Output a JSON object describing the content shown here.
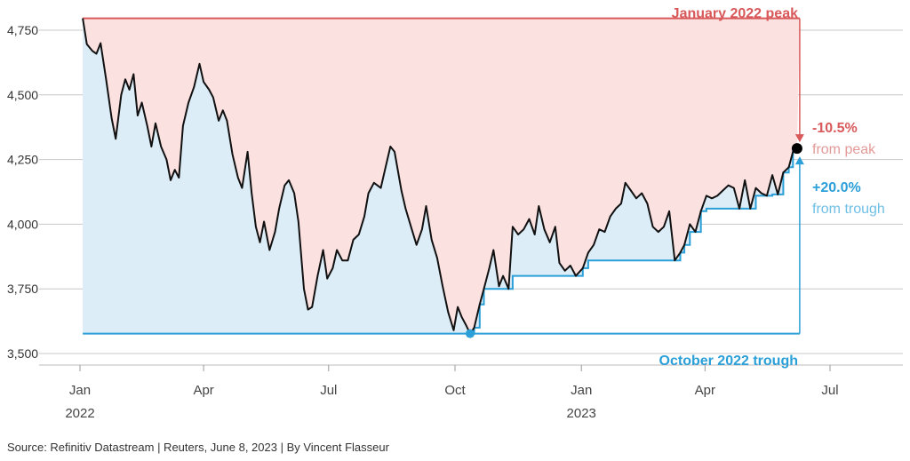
{
  "chart_data": {
    "type": "line",
    "ylim": [
      3500,
      4750
    ],
    "yticks": [
      "4,750",
      "4,500",
      "4,250",
      "4,000",
      "3,750",
      "3,500"
    ],
    "ytick_values": [
      4750,
      4500,
      4250,
      4000,
      3750,
      3500
    ],
    "xlim": [
      "2022-01-01",
      "2023-07-20"
    ],
    "xticks": [
      {
        "label": "Jan",
        "sub": "2022",
        "date": "2022-01-01"
      },
      {
        "label": "Apr",
        "sub": "",
        "date": "2022-04-01"
      },
      {
        "label": "Jul",
        "sub": "",
        "date": "2022-07-01"
      },
      {
        "label": "Oct",
        "sub": "",
        "date": "2022-10-01"
      },
      {
        "label": "Jan",
        "sub": "2023",
        "date": "2023-01-01"
      },
      {
        "label": "Apr",
        "sub": "",
        "date": "2023-04-01"
      },
      {
        "label": "Jul",
        "sub": "",
        "date": "2023-07-01"
      }
    ],
    "peak": {
      "value": 4796,
      "date": "2022-01-03",
      "label": "January 2022 peak"
    },
    "trough": {
      "value": 3577,
      "date": "2022-10-12",
      "label": "October 2022 trough"
    },
    "latest": {
      "value": 4293,
      "date": "2023-06-07"
    },
    "annotations": {
      "from_peak_pct": "-10.5%",
      "from_peak_text": "from peak",
      "from_trough_pct": "+20.0%",
      "from_trough_text": "from trough"
    },
    "colors": {
      "line": "#111111",
      "peak": "#d9595b",
      "trough": "#2a9fd8",
      "drawdown_fill": "#fbe1df",
      "recovery_fill": "#dcedf8",
      "grid": "#c8c8c8"
    },
    "series": [
      {
        "values": [
          [
            "2022-01-03",
            4796
          ],
          [
            "2022-01-06",
            4696
          ],
          [
            "2022-01-10",
            4670
          ],
          [
            "2022-01-13",
            4659
          ],
          [
            "2022-01-16",
            4700
          ],
          [
            "2022-01-20",
            4560
          ],
          [
            "2022-01-24",
            4410
          ],
          [
            "2022-01-27",
            4330
          ],
          [
            "2022-01-31",
            4500
          ],
          [
            "2022-02-03",
            4560
          ],
          [
            "2022-02-06",
            4520
          ],
          [
            "2022-02-09",
            4580
          ],
          [
            "2022-02-12",
            4420
          ],
          [
            "2022-02-15",
            4470
          ],
          [
            "2022-02-19",
            4380
          ],
          [
            "2022-02-22",
            4300
          ],
          [
            "2022-02-25",
            4390
          ],
          [
            "2022-03-01",
            4300
          ],
          [
            "2022-03-05",
            4250
          ],
          [
            "2022-03-08",
            4170
          ],
          [
            "2022-03-11",
            4210
          ],
          [
            "2022-03-14",
            4180
          ],
          [
            "2022-03-17",
            4380
          ],
          [
            "2022-03-21",
            4470
          ],
          [
            "2022-03-25",
            4530
          ],
          [
            "2022-03-29",
            4620
          ],
          [
            "2022-04-01",
            4550
          ],
          [
            "2022-04-05",
            4520
          ],
          [
            "2022-04-08",
            4490
          ],
          [
            "2022-04-12",
            4400
          ],
          [
            "2022-04-15",
            4440
          ],
          [
            "2022-04-18",
            4400
          ],
          [
            "2022-04-22",
            4270
          ],
          [
            "2022-04-26",
            4180
          ],
          [
            "2022-04-29",
            4140
          ],
          [
            "2022-05-03",
            4280
          ],
          [
            "2022-05-06",
            4120
          ],
          [
            "2022-05-09",
            3990
          ],
          [
            "2022-05-12",
            3930
          ],
          [
            "2022-05-15",
            4010
          ],
          [
            "2022-05-19",
            3900
          ],
          [
            "2022-05-23",
            3970
          ],
          [
            "2022-05-26",
            4060
          ],
          [
            "2022-05-30",
            4150
          ],
          [
            "2022-06-02",
            4170
          ],
          [
            "2022-06-06",
            4120
          ],
          [
            "2022-06-09",
            4010
          ],
          [
            "2022-06-13",
            3750
          ],
          [
            "2022-06-16",
            3670
          ],
          [
            "2022-06-19",
            3680
          ],
          [
            "2022-06-23",
            3800
          ],
          [
            "2022-06-27",
            3900
          ],
          [
            "2022-06-30",
            3790
          ],
          [
            "2022-07-04",
            3830
          ],
          [
            "2022-07-07",
            3900
          ],
          [
            "2022-07-11",
            3860
          ],
          [
            "2022-07-15",
            3860
          ],
          [
            "2022-07-19",
            3940
          ],
          [
            "2022-07-23",
            3960
          ],
          [
            "2022-07-27",
            4030
          ],
          [
            "2022-07-30",
            4120
          ],
          [
            "2022-08-03",
            4160
          ],
          [
            "2022-08-08",
            4140
          ],
          [
            "2022-08-11",
            4210
          ],
          [
            "2022-08-15",
            4300
          ],
          [
            "2022-08-18",
            4280
          ],
          [
            "2022-08-23",
            4130
          ],
          [
            "2022-08-26",
            4060
          ],
          [
            "2022-08-30",
            3990
          ],
          [
            "2022-09-03",
            3920
          ],
          [
            "2022-09-07",
            3980
          ],
          [
            "2022-09-10",
            4070
          ],
          [
            "2022-09-14",
            3940
          ],
          [
            "2022-09-18",
            3870
          ],
          [
            "2022-09-22",
            3760
          ],
          [
            "2022-09-26",
            3660
          ],
          [
            "2022-09-30",
            3590
          ],
          [
            "2022-10-03",
            3680
          ],
          [
            "2022-10-06",
            3640
          ],
          [
            "2022-10-09",
            3610
          ],
          [
            "2022-10-12",
            3577
          ],
          [
            "2022-10-15",
            3600
          ],
          [
            "2022-10-19",
            3690
          ],
          [
            "2022-10-22",
            3750
          ],
          [
            "2022-10-26",
            3830
          ],
          [
            "2022-10-29",
            3900
          ],
          [
            "2022-11-02",
            3760
          ],
          [
            "2022-11-05",
            3800
          ],
          [
            "2022-11-09",
            3750
          ],
          [
            "2022-11-12",
            3990
          ],
          [
            "2022-11-16",
            3960
          ],
          [
            "2022-11-20",
            3980
          ],
          [
            "2022-11-24",
            4020
          ],
          [
            "2022-11-28",
            3960
          ],
          [
            "2022-12-01",
            4070
          ],
          [
            "2022-12-05",
            3980
          ],
          [
            "2022-12-09",
            3930
          ],
          [
            "2022-12-13",
            3990
          ],
          [
            "2022-12-16",
            3850
          ],
          [
            "2022-12-20",
            3820
          ],
          [
            "2022-12-24",
            3840
          ],
          [
            "2022-12-28",
            3800
          ],
          [
            "2023-01-02",
            3830
          ],
          [
            "2023-01-06",
            3890
          ],
          [
            "2023-01-10",
            3920
          ],
          [
            "2023-01-14",
            3980
          ],
          [
            "2023-01-18",
            3970
          ],
          [
            "2023-01-22",
            4030
          ],
          [
            "2023-01-26",
            4060
          ],
          [
            "2023-01-30",
            4080
          ],
          [
            "2023-02-02",
            4160
          ],
          [
            "2023-02-06",
            4130
          ],
          [
            "2023-02-10",
            4100
          ],
          [
            "2023-02-14",
            4120
          ],
          [
            "2023-02-18",
            4080
          ],
          [
            "2023-02-22",
            3990
          ],
          [
            "2023-02-26",
            3970
          ],
          [
            "2023-03-02",
            3990
          ],
          [
            "2023-03-06",
            4050
          ],
          [
            "2023-03-10",
            3860
          ],
          [
            "2023-03-14",
            3890
          ],
          [
            "2023-03-17",
            3920
          ],
          [
            "2023-03-21",
            4000
          ],
          [
            "2023-03-25",
            3970
          ],
          [
            "2023-03-29",
            4050
          ],
          [
            "2023-04-02",
            4110
          ],
          [
            "2023-04-06",
            4100
          ],
          [
            "2023-04-10",
            4110
          ],
          [
            "2023-04-14",
            4130
          ],
          [
            "2023-04-18",
            4150
          ],
          [
            "2023-04-22",
            4140
          ],
          [
            "2023-04-26",
            4060
          ],
          [
            "2023-04-30",
            4170
          ],
          [
            "2023-05-04",
            4060
          ],
          [
            "2023-05-08",
            4140
          ],
          [
            "2023-05-12",
            4120
          ],
          [
            "2023-05-16",
            4110
          ],
          [
            "2023-05-20",
            4190
          ],
          [
            "2023-05-24",
            4115
          ],
          [
            "2023-05-28",
            4200
          ],
          [
            "2023-06-01",
            4220
          ],
          [
            "2023-06-04",
            4280
          ],
          [
            "2023-06-07",
            4293
          ]
        ]
      }
    ]
  },
  "source": "Source: Refinitiv Datastream | Reuters, June 8, 2023 | By Vincent Flasseur"
}
